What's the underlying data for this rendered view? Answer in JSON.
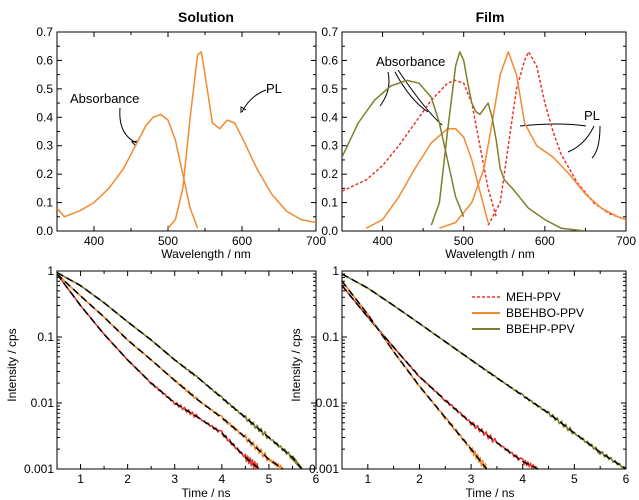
{
  "colors": {
    "meh": "#e8352e",
    "bbehbo": "#f28a30",
    "bbehp": "#7f7f2a",
    "fit": "#000000"
  },
  "legend": [
    {
      "name": "MEH-PPV",
      "color": "#e8352e",
      "dash": true
    },
    {
      "name": "BBEHBO-PPV",
      "color": "#f28a30",
      "dash": false
    },
    {
      "name": "BBEHP-PPV",
      "color": "#7f7f2a",
      "dash": false
    }
  ],
  "chart_data": [
    {
      "type": "line",
      "title": "Solution",
      "xlabel": "Wavelength / nm",
      "ylabel": "",
      "xlim": [
        350,
        700
      ],
      "ylim": [
        0,
        0.7
      ],
      "xticks": [
        400,
        500,
        600,
        700
      ],
      "yticks": [
        0.0,
        0.1,
        0.2,
        0.3,
        0.4,
        0.5,
        0.6,
        0.7
      ],
      "annotations": [
        {
          "text": "Absorbance"
        },
        {
          "text": "PL"
        }
      ],
      "series": [
        {
          "color": "#f28a30",
          "x": [
            350,
            360,
            380,
            400,
            420,
            440,
            460,
            470,
            480,
            490,
            500,
            510,
            520,
            530,
            540
          ],
          "y": [
            0.08,
            0.05,
            0.07,
            0.1,
            0.15,
            0.22,
            0.32,
            0.37,
            0.4,
            0.41,
            0.39,
            0.32,
            0.2,
            0.08,
            0.01
          ]
        },
        {
          "color": "#f28a30",
          "x": [
            500,
            510,
            520,
            530,
            540,
            545,
            550,
            560,
            570,
            580,
            590,
            600,
            620,
            640,
            660,
            680,
            700
          ],
          "y": [
            0.01,
            0.04,
            0.15,
            0.4,
            0.62,
            0.63,
            0.55,
            0.38,
            0.36,
            0.39,
            0.38,
            0.33,
            0.22,
            0.13,
            0.07,
            0.04,
            0.03
          ]
        }
      ]
    },
    {
      "type": "line",
      "title": "Film",
      "xlabel": "Wavelength / nm",
      "ylabel": "",
      "xlim": [
        350,
        700
      ],
      "ylim": [
        0,
        0.7
      ],
      "xticks": [
        400,
        500,
        600,
        700
      ],
      "yticks": [
        0.0,
        0.1,
        0.2,
        0.3,
        0.4,
        0.5,
        0.6,
        0.7
      ],
      "annotations": [
        {
          "text": "Absorbance"
        },
        {
          "text": "PL"
        }
      ],
      "series": [
        {
          "name": "MEH-PPV",
          "color": "#e8352e",
          "x": [
            350,
            380,
            400,
            420,
            440,
            460,
            480,
            490,
            500,
            510,
            520,
            530,
            540
          ],
          "y": [
            0.14,
            0.18,
            0.23,
            0.3,
            0.38,
            0.46,
            0.52,
            0.53,
            0.52,
            0.45,
            0.3,
            0.15,
            0.05
          ]
        },
        {
          "name": "MEH-PPV",
          "color": "#e8352e",
          "x": [
            530,
            545,
            555,
            565,
            575,
            580,
            590,
            600,
            610,
            620,
            640,
            660,
            680,
            700
          ],
          "y": [
            0.02,
            0.1,
            0.3,
            0.5,
            0.6,
            0.63,
            0.58,
            0.45,
            0.35,
            0.27,
            0.17,
            0.1,
            0.06,
            0.04
          ]
        },
        {
          "name": "BBEHBO-PPV",
          "color": "#f28a30",
          "x": [
            380,
            400,
            420,
            440,
            460,
            480,
            490,
            500,
            510,
            520,
            530
          ],
          "y": [
            0.01,
            0.04,
            0.12,
            0.22,
            0.31,
            0.36,
            0.36,
            0.33,
            0.25,
            0.14,
            0.03
          ]
        },
        {
          "name": "BBEHBO-PPV",
          "color": "#f28a30",
          "x": [
            470,
            490,
            510,
            525,
            535,
            545,
            555,
            565,
            575,
            590,
            610,
            630,
            650,
            670,
            690,
            700
          ],
          "y": [
            0.01,
            0.03,
            0.1,
            0.22,
            0.38,
            0.55,
            0.63,
            0.55,
            0.38,
            0.3,
            0.26,
            0.2,
            0.13,
            0.08,
            0.05,
            0.04
          ]
        },
        {
          "name": "BBEHP-PPV",
          "color": "#7f7f2a",
          "x": [
            350,
            370,
            390,
            410,
            430,
            445,
            460,
            470,
            480,
            490,
            500
          ],
          "y": [
            0.26,
            0.38,
            0.46,
            0.51,
            0.53,
            0.52,
            0.47,
            0.38,
            0.25,
            0.12,
            0.05
          ]
        },
        {
          "name": "BBEHP-PPV",
          "color": "#7f7f2a",
          "x": [
            460,
            470,
            480,
            490,
            495,
            500,
            505,
            510,
            515,
            520,
            525,
            530,
            535,
            540,
            545,
            550,
            560,
            580,
            600,
            620,
            650
          ],
          "y": [
            0.02,
            0.1,
            0.35,
            0.58,
            0.63,
            0.6,
            0.52,
            0.45,
            0.42,
            0.41,
            0.43,
            0.45,
            0.4,
            0.32,
            0.22,
            0.18,
            0.15,
            0.08,
            0.04,
            0.01,
            0.0
          ]
        }
      ]
    },
    {
      "type": "line",
      "title": "",
      "xlabel": "Time / ns",
      "ylabel": "Intensity / cps",
      "xlim": [
        0.5,
        6
      ],
      "ylim": [
        0.001,
        1
      ],
      "yscale": "log",
      "xticks": [
        1,
        2,
        3,
        4,
        5,
        6
      ],
      "yticks": [
        0.001,
        0.01,
        0.1,
        1
      ],
      "ytick_labels": [
        "0.001",
        "0.01",
        "0.1",
        "1"
      ],
      "series": [
        {
          "name": "MEH-PPV",
          "color": "#e8352e",
          "x": [
            0.5,
            1,
            1.5,
            2,
            2.5,
            3,
            3.5,
            4,
            4.5,
            4.8
          ],
          "y": [
            0.9,
            0.3,
            0.11,
            0.045,
            0.02,
            0.01,
            0.006,
            0.0035,
            0.0015,
            0.001
          ]
        },
        {
          "name": "BBEHBO-PPV",
          "color": "#f28a30",
          "x": [
            0.5,
            1,
            1.5,
            2,
            2.5,
            3,
            3.5,
            4,
            4.5,
            5,
            5.3
          ],
          "y": [
            0.9,
            0.42,
            0.2,
            0.09,
            0.045,
            0.022,
            0.011,
            0.006,
            0.003,
            0.0014,
            0.001
          ]
        },
        {
          "name": "BBEHP-PPV",
          "color": "#7f7f2a",
          "x": [
            0.5,
            1,
            1.5,
            2,
            2.5,
            3,
            3.5,
            4,
            4.5,
            5,
            5.5,
            5.7
          ],
          "y": [
            0.95,
            0.6,
            0.33,
            0.17,
            0.09,
            0.045,
            0.024,
            0.012,
            0.006,
            0.003,
            0.0015,
            0.001
          ]
        }
      ]
    },
    {
      "type": "line",
      "title": "",
      "xlabel": "Time / ns",
      "ylabel": "Intensity / cps",
      "xlim": [
        0.5,
        6
      ],
      "ylim": [
        0.001,
        1
      ],
      "yscale": "log",
      "xticks": [
        1,
        2,
        3,
        4,
        5,
        6
      ],
      "yticks": [
        0.001,
        0.01,
        0.1,
        1
      ],
      "ytick_labels": [
        "0.001",
        "0.01",
        "0.1",
        "1"
      ],
      "legend_position": "top-right",
      "series": [
        {
          "name": "MEH-PPV",
          "color": "#e8352e",
          "x": [
            0.5,
            1,
            1.5,
            2,
            2.5,
            3,
            3.5,
            4,
            4.3
          ],
          "y": [
            0.6,
            0.2,
            0.07,
            0.025,
            0.011,
            0.005,
            0.0025,
            0.0013,
            0.001
          ]
        },
        {
          "name": "BBEHBO-PPV",
          "color": "#f28a30",
          "x": [
            0.5,
            1,
            1.5,
            2,
            2.5,
            3,
            3.3
          ],
          "y": [
            0.7,
            0.22,
            0.06,
            0.018,
            0.006,
            0.002,
            0.001
          ]
        },
        {
          "name": "BBEHP-PPV",
          "color": "#7f7f2a",
          "x": [
            0.5,
            1,
            1.5,
            2,
            2.5,
            3,
            3.5,
            4,
            4.5,
            5,
            5.5,
            6
          ],
          "y": [
            0.9,
            0.55,
            0.3,
            0.16,
            0.085,
            0.045,
            0.024,
            0.013,
            0.007,
            0.0035,
            0.0018,
            0.001
          ]
        }
      ]
    }
  ]
}
